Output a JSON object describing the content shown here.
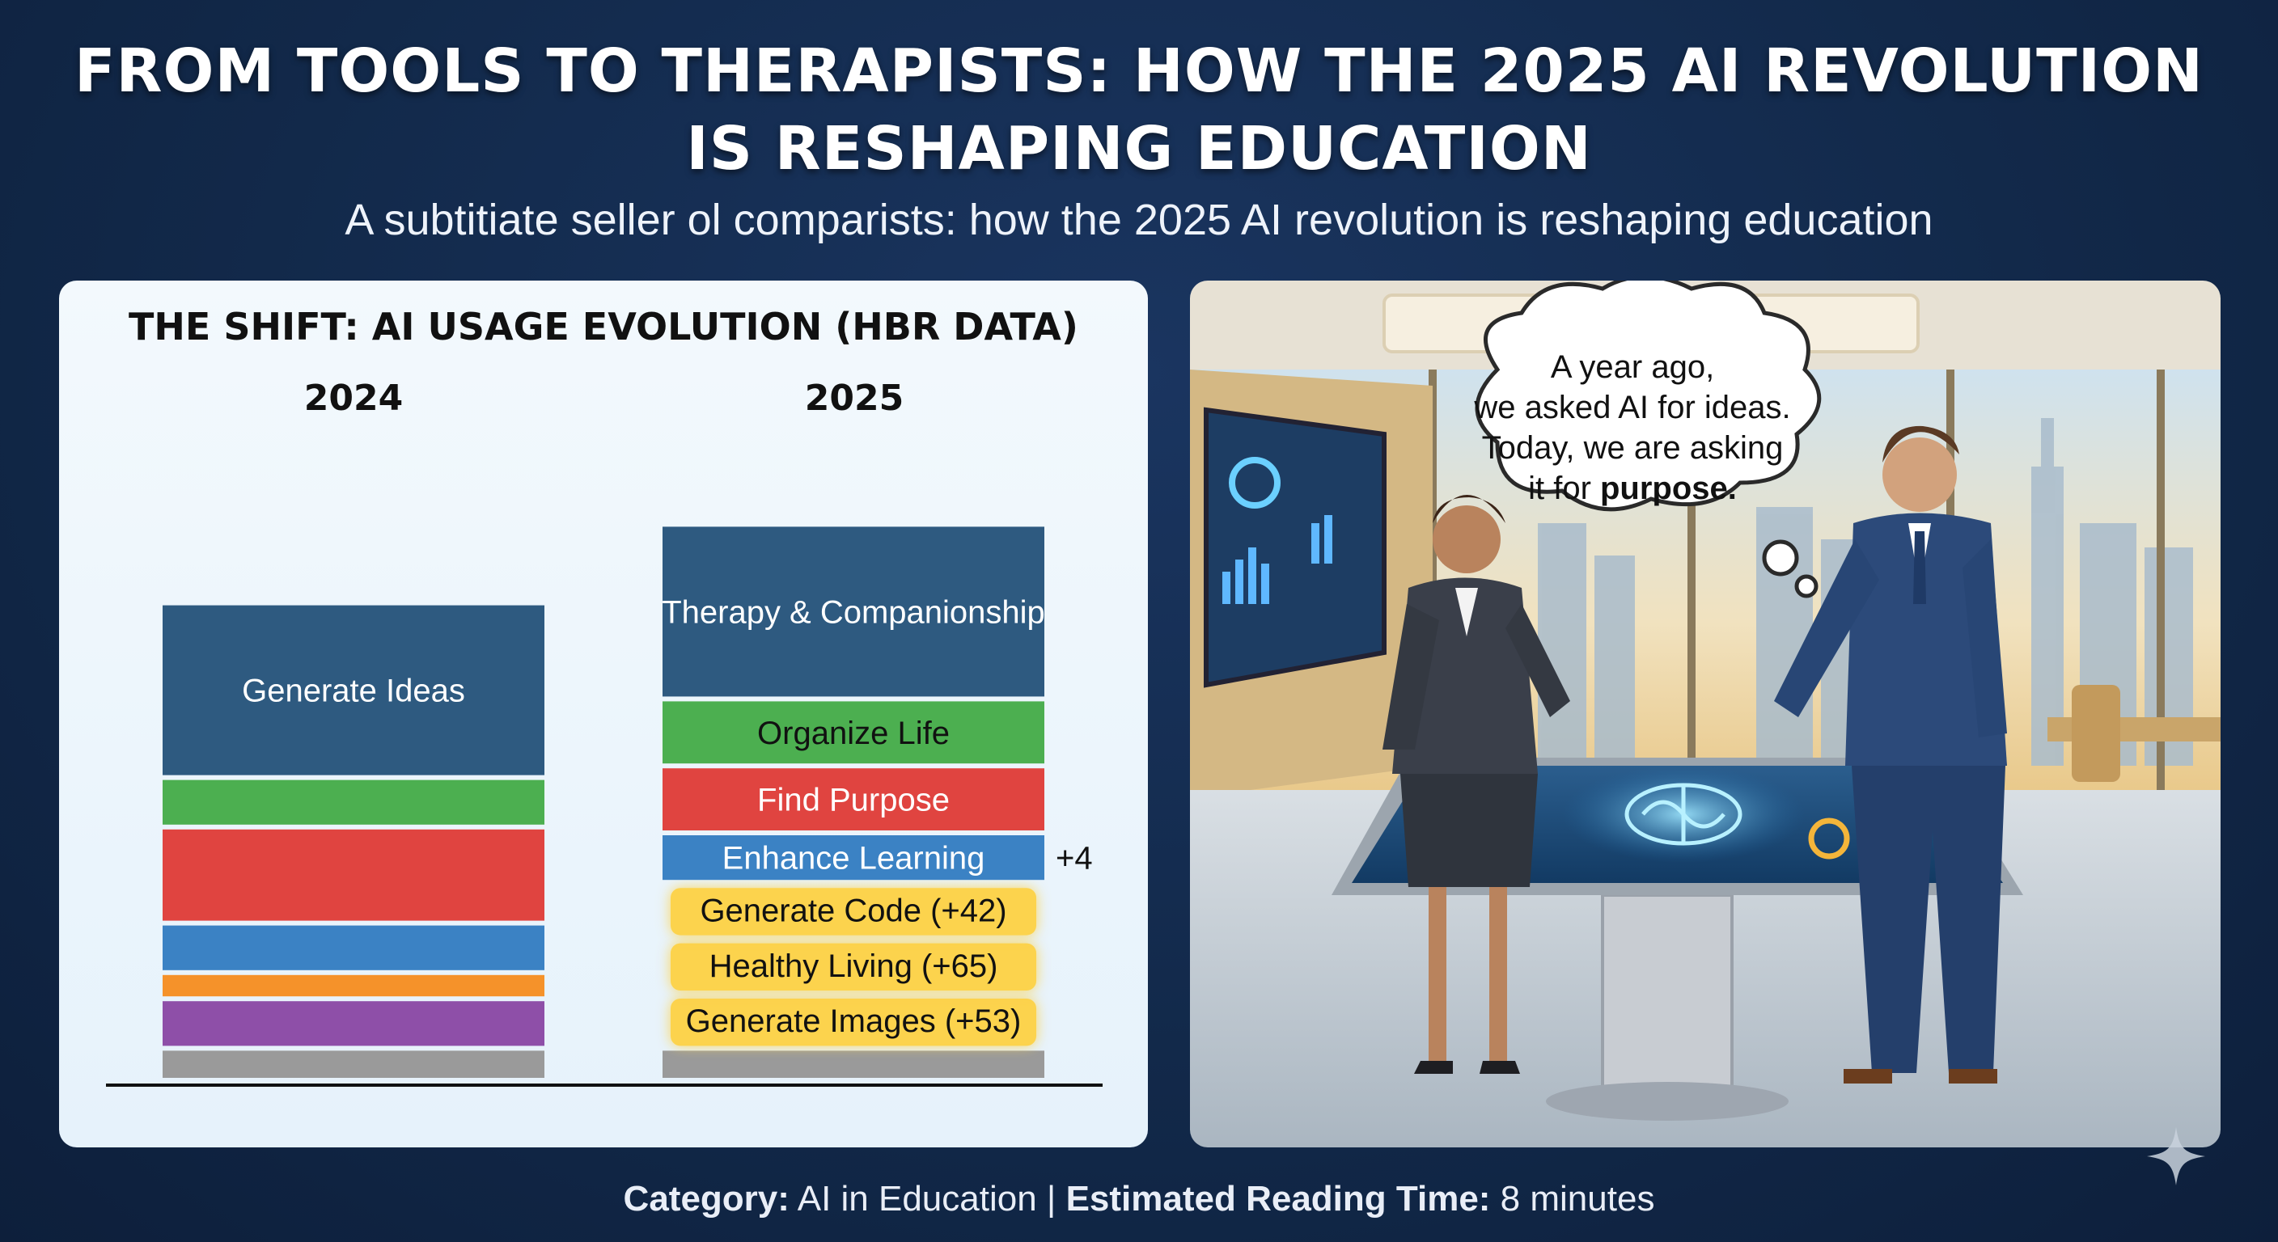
{
  "header": {
    "title_line1": "FROM TOOLS TO THERAPISTS: HOW THE 2025 AI REVOLUTION",
    "title_line2": "IS RESHAPING EDUCATION",
    "subtitle": "A subtitiate seller ol comparists: how the 2025 AI revolution is reshaping education"
  },
  "chart_data": {
    "type": "stacked-bar",
    "title": "THE SHIFT: AI USAGE EVOLUTION (HBR DATA)",
    "categories": [
      "2024",
      "2025"
    ],
    "stacks": [
      {
        "year": "2024",
        "segments": [
          {
            "label": "Generate Ideas",
            "color": "#2e5a80",
            "size": 120
          },
          {
            "label": "",
            "color": "#4caf50",
            "size": 34
          },
          {
            "label": "",
            "color": "#e04440",
            "size": 66
          },
          {
            "label": "",
            "color": "#3b82c4",
            "size": 34
          },
          {
            "label": "",
            "color": "#f5922a",
            "size": 18
          },
          {
            "label": "",
            "color": "#8e4fa8",
            "size": 34
          },
          {
            "label": "",
            "color": "#9a9a9a",
            "size": 22
          }
        ]
      },
      {
        "year": "2025",
        "segments": [
          {
            "label": "Therapy & Companionship",
            "color": "#2e5a80",
            "size": 120
          },
          {
            "label": "Organize Life",
            "color": "#4caf50",
            "size": 46
          },
          {
            "label": "Find Purpose",
            "color": "#e04440",
            "size": 46
          },
          {
            "label": "Enhance Learning",
            "color": "#3b82c4",
            "size": 34
          },
          {
            "label": "Generate Code (+42)",
            "color": "#fcd34d",
            "size": 38
          },
          {
            "label": "Healthy Living (+65)",
            "color": "#fcd34d",
            "size": 38
          },
          {
            "label": "Generate Images (+53)",
            "color": "#fcd34d",
            "size": 38
          },
          {
            "label": "",
            "color": "#9a9a9a",
            "size": 22
          }
        ]
      }
    ],
    "annotations": [
      {
        "text": "+4",
        "attached_to": "Enhance Learning"
      }
    ]
  },
  "illustration": {
    "bubble_line1": "A year ago,",
    "bubble_line2": "we asked AI for ideas.",
    "bubble_line3": "Today, we are asking",
    "bubble_line4_prefix": "it for ",
    "bubble_line4_bold": "purpose."
  },
  "footer": {
    "category_label": "Category:",
    "category_value": " AI in Education | ",
    "reading_label": "Estimated Reading Time:",
    "reading_value": " 8 minutes"
  },
  "colors": {
    "background": "#12294a",
    "accent_blue": "#2e5a80",
    "highlight_yellow": "#fcd34d"
  }
}
